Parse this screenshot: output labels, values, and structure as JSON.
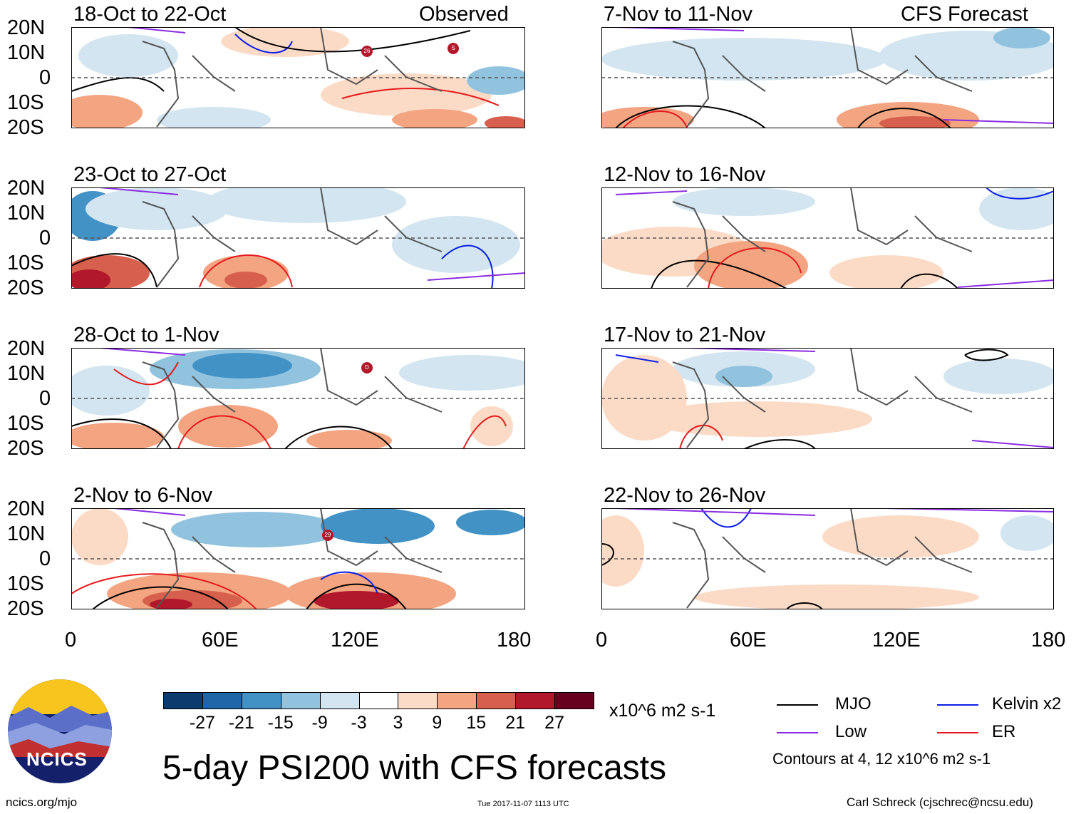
{
  "title": "5-day PSI200 with CFS forecasts",
  "observed_label": "Observed",
  "forecast_label": "CFS Forecast",
  "panels": {
    "observed": [
      {
        "period": "18-Oct to 22-Oct"
      },
      {
        "period": "23-Oct to 27-Oct"
      },
      {
        "period": "28-Oct to 1-Nov"
      },
      {
        "period": "2-Nov to 6-Nov"
      }
    ],
    "forecast": [
      {
        "period": "7-Nov to 11-Nov"
      },
      {
        "period": "12-Nov to 16-Nov"
      },
      {
        "period": "17-Nov to 21-Nov"
      },
      {
        "period": "22-Nov to 26-Nov"
      }
    ]
  },
  "lat_labels": [
    "20N",
    "10N",
    "0",
    "10S",
    "20S"
  ],
  "lon_labels": [
    "0",
    "60E",
    "120E",
    "180"
  ],
  "colorbar": {
    "labels": [
      "-27",
      "-21",
      "-15",
      "-9",
      "-3",
      "3",
      "9",
      "15",
      "21",
      "27"
    ],
    "colors": [
      "#0a3a6e",
      "#1f66a8",
      "#4392c6",
      "#91c3de",
      "#d2e5f0",
      "#ffffff",
      "#fcdbc6",
      "#f3a481",
      "#d6604d",
      "#b2182b",
      "#67001f"
    ],
    "units": "x10^6 m2 s-1"
  },
  "legend": {
    "mjo": "MJO",
    "kelvin": "Kelvin x2",
    "low": "Low",
    "er": "ER",
    "contours": "Contours at 4, 12 x10^6 m2 s-1",
    "colors": {
      "mjo": "#000000",
      "kelvin": "#0a1ee6",
      "low": "#8a2be2",
      "er": "#e41a1c"
    }
  },
  "logo_text": "NCICS",
  "website": "ncics.org/mjo",
  "timestamp": "Tue 2017-11-07 1113 UTC",
  "credit": "Carl Schreck (cjschrec@ncsu.edu)",
  "storm_labels": [
    "26",
    "S",
    "D",
    "29"
  ]
}
